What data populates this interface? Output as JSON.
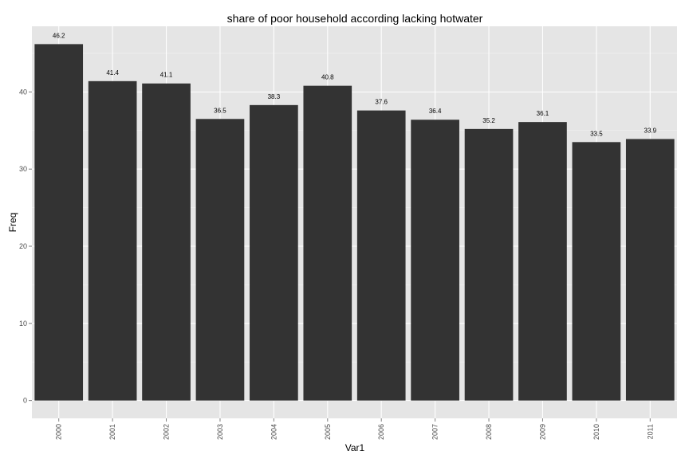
{
  "chart_data": {
    "type": "bar",
    "title": "share of poor household according lacking hotwater",
    "xlabel": "Var1",
    "ylabel": "Freq",
    "categories": [
      "2000",
      "2001",
      "2002",
      "2003",
      "2004",
      "2005",
      "2006",
      "2007",
      "2008",
      "2009",
      "2010",
      "2011"
    ],
    "values": [
      46.2,
      41.4,
      41.1,
      36.5,
      38.3,
      40.8,
      37.6,
      36.4,
      35.2,
      36.1,
      33.5,
      33.9
    ],
    "value_labels": [
      "46.2",
      "41.4",
      "41.1",
      "36.5",
      "38.3",
      "40.8",
      "37.6",
      "36.4",
      "35.2",
      "36.1",
      "33.5",
      "33.9"
    ],
    "yticks": [
      0,
      10,
      20,
      30,
      40
    ],
    "ytick_labels": [
      "0",
      "10",
      "20",
      "30",
      "40"
    ],
    "ylim": [
      -2.31,
      48.51
    ],
    "grid": true,
    "legend": "none",
    "colors": {
      "bar": "#333333",
      "panel": "#e5e5e5",
      "grid_major": "#ffffff",
      "grid_minor": "#f2f2f2"
    }
  }
}
